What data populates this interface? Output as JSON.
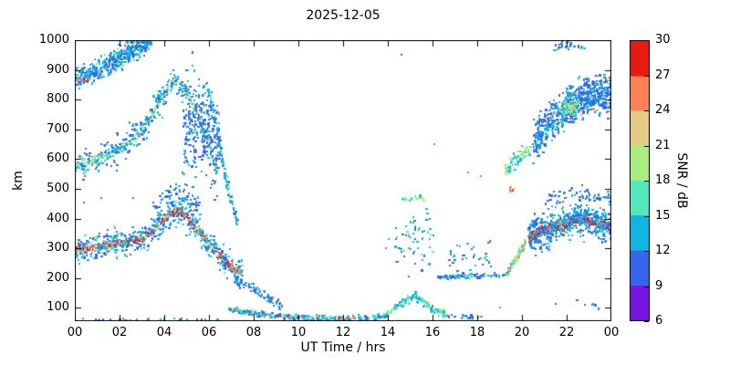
{
  "title": "2025-12-05",
  "chart_data": {
    "type": "scatter",
    "title": "2025-12-05",
    "xlabel": "UT Time / hrs",
    "ylabel": "km",
    "cblabel": "SNR / dB",
    "xlim": [
      0,
      24
    ],
    "ylim": [
      55,
      1000
    ],
    "snr_lim": [
      6,
      30
    ],
    "grid": false,
    "legend": "colorbar-right",
    "xticks": [
      "00",
      "02",
      "04",
      "06",
      "08",
      "10",
      "12",
      "14",
      "16",
      "18",
      "20",
      "22",
      "00"
    ],
    "xtick_values": [
      0,
      2,
      4,
      6,
      8,
      10,
      12,
      14,
      16,
      18,
      20,
      22,
      24
    ],
    "yticks": [
      100,
      200,
      300,
      400,
      500,
      600,
      700,
      800,
      900,
      1000
    ],
    "cbticks": [
      6,
      9,
      12,
      15,
      18,
      21,
      24,
      27,
      30
    ],
    "colorbar_colors": [
      "#7716e3",
      "#3565e8",
      "#0fb6e1",
      "#52e8bb",
      "#a9ee7e",
      "#e2cc83",
      "#fa8256",
      "#e8190f"
    ],
    "bands": [
      {
        "name": "morning-F-core",
        "path": [
          [
            0,
            300
          ],
          [
            1,
            305
          ],
          [
            2,
            318
          ],
          [
            3,
            332
          ],
          [
            3.7,
            372
          ],
          [
            4.3,
            418
          ],
          [
            4.7,
            426
          ],
          [
            5,
            402
          ],
          [
            5.5,
            362
          ],
          [
            6,
            316
          ],
          [
            6.5,
            272
          ],
          [
            7,
            236
          ],
          [
            7.5,
            216
          ]
        ],
        "spread": 13,
        "n": 560,
        "snr": [
          21,
          30
        ]
      },
      {
        "name": "morning-F-fringe",
        "path": [
          [
            0,
            300
          ],
          [
            1,
            305
          ],
          [
            2,
            318
          ],
          [
            3,
            332
          ],
          [
            3.7,
            372
          ],
          [
            4.3,
            418
          ],
          [
            4.7,
            426
          ],
          [
            5,
            402
          ],
          [
            5.5,
            362
          ],
          [
            6,
            316
          ],
          [
            6.5,
            272
          ],
          [
            7,
            236
          ],
          [
            7.5,
            216
          ]
        ],
        "spread": 46,
        "n": 520,
        "snr": [
          9,
          16
        ]
      },
      {
        "name": "morning-F-peak-top",
        "path": [
          [
            3.5,
            440
          ],
          [
            4,
            472
          ],
          [
            4.5,
            492
          ],
          [
            5,
            472
          ],
          [
            5.6,
            442
          ]
        ],
        "spread": 28,
        "n": 70,
        "snr": [
          9,
          14
        ]
      },
      {
        "name": "second-hop-core",
        "path": [
          [
            0,
            580
          ],
          [
            0.8,
            596
          ],
          [
            1.6,
            618
          ],
          [
            2.4,
            652
          ],
          [
            3,
            702
          ],
          [
            3.5,
            758
          ],
          [
            4,
            818
          ],
          [
            4.5,
            866
          ],
          [
            5,
            828
          ],
          [
            5.5,
            742
          ],
          [
            6,
            642
          ],
          [
            6.4,
            562
          ]
        ],
        "spread": 18,
        "n": 300,
        "snr": [
          12,
          23
        ]
      },
      {
        "name": "second-hop-fringe",
        "path": [
          [
            0,
            580
          ],
          [
            0.8,
            596
          ],
          [
            1.6,
            618
          ],
          [
            2.4,
            652
          ],
          [
            3,
            702
          ],
          [
            3.5,
            758
          ],
          [
            4,
            818
          ],
          [
            4.5,
            866
          ],
          [
            5,
            828
          ],
          [
            5.5,
            742
          ],
          [
            6,
            642
          ],
          [
            6.4,
            562
          ]
        ],
        "spread": 52,
        "n": 240,
        "snr": [
          9,
          14
        ]
      },
      {
        "name": "third-hop",
        "path": [
          [
            0,
            868
          ],
          [
            0.7,
            888
          ],
          [
            1.4,
            914
          ],
          [
            2.1,
            944
          ],
          [
            2.8,
            976
          ],
          [
            3.4,
            1000
          ]
        ],
        "spread": 34,
        "n": 440,
        "snr": [
          9,
          16
        ]
      },
      {
        "name": "left-edge-strong-dots",
        "path": [
          [
            0.1,
            862
          ],
          [
            0.6,
            870
          ]
        ],
        "spread": 9,
        "n": 10,
        "snr": [
          23,
          30
        ]
      },
      {
        "name": "spread-F-columns",
        "path": [
          [
            4.8,
            700
          ],
          [
            5.3,
            730
          ],
          [
            5.8,
            705
          ],
          [
            6.2,
            680
          ],
          [
            6.5,
            650
          ]
        ],
        "spread": 165,
        "n": 260,
        "snr": [
          9,
          13
        ]
      },
      {
        "name": "descending-streak",
        "path": [
          [
            5.9,
            850
          ],
          [
            6.2,
            750
          ],
          [
            6.5,
            630
          ],
          [
            6.8,
            520
          ],
          [
            7.1,
            430
          ],
          [
            7.3,
            380
          ]
        ],
        "spread": 24,
        "n": 120,
        "snr": [
          9,
          16
        ]
      },
      {
        "name": "morning-low-tail",
        "path": [
          [
            7.1,
            205
          ],
          [
            7.6,
            182
          ],
          [
            8.1,
            158
          ],
          [
            8.7,
            130
          ],
          [
            9.3,
            106
          ]
        ],
        "spread": 16,
        "n": 80,
        "snr": [
          9,
          14
        ]
      },
      {
        "name": "e-layer-sparse-early",
        "path": [
          [
            0.3,
            62
          ],
          [
            6.5,
            62
          ]
        ],
        "spread": 5,
        "n": 26,
        "snr": [
          9,
          15
        ]
      },
      {
        "name": "e-layer-main",
        "path": [
          [
            6.9,
            96
          ],
          [
            7.6,
            86
          ],
          [
            8.6,
            76
          ],
          [
            10,
            68
          ],
          [
            12,
            64
          ],
          [
            13.5,
            68
          ],
          [
            14,
            76
          ]
        ],
        "spread": 9,
        "n": 300,
        "snr": [
          9,
          18
        ]
      },
      {
        "name": "e-layer-strong-dots",
        "path": [
          [
            7,
            95
          ],
          [
            8,
            80
          ],
          [
            10,
            68
          ],
          [
            13,
            66
          ]
        ],
        "spread": 7,
        "n": 22,
        "snr": [
          21,
          29
        ]
      },
      {
        "name": "e-layer-afternoon-bump",
        "path": [
          [
            14,
            82
          ],
          [
            14.4,
            102
          ],
          [
            14.8,
            126
          ],
          [
            15.2,
            140
          ],
          [
            15.6,
            120
          ],
          [
            16,
            96
          ],
          [
            16.6,
            80
          ]
        ],
        "spread": 14,
        "n": 150,
        "snr": [
          11,
          20
        ]
      },
      {
        "name": "e-layer-late-sparse",
        "path": [
          [
            16.6,
            74
          ],
          [
            18.2,
            68
          ]
        ],
        "spread": 7,
        "n": 20,
        "snr": [
          9,
          15
        ]
      },
      {
        "name": "afternoon-scatter",
        "path": [
          [
            14.2,
            300
          ],
          [
            15,
            330
          ],
          [
            16.1,
            360
          ]
        ],
        "spread": 85,
        "n": 60,
        "snr": [
          9,
          16
        ]
      },
      {
        "name": "afternoon-line-470",
        "path": [
          [
            14.6,
            464
          ],
          [
            15.6,
            470
          ]
        ],
        "spread": 7,
        "n": 22,
        "snr": [
          14,
          20
        ]
      },
      {
        "name": "evening-low-line",
        "path": [
          [
            16.2,
            204
          ],
          [
            17.2,
            206
          ],
          [
            18.2,
            208
          ],
          [
            19.1,
            211
          ],
          [
            19.4,
            216
          ]
        ],
        "spread": 7,
        "n": 85,
        "snr": [
          9,
          16
        ]
      },
      {
        "name": "evening-low-scatter",
        "path": [
          [
            16.6,
            262
          ],
          [
            17.6,
            272
          ],
          [
            18.6,
            282
          ]
        ],
        "spread": 55,
        "n": 34,
        "snr": [
          9,
          14
        ]
      },
      {
        "name": "evening-rise",
        "path": [
          [
            19.35,
            218
          ],
          [
            19.6,
            246
          ],
          [
            19.9,
            286
          ],
          [
            20.15,
            318
          ]
        ],
        "spread": 14,
        "n": 90,
        "snr": [
          14,
          27
        ]
      },
      {
        "name": "evening-F-core",
        "path": [
          [
            20.3,
            336
          ],
          [
            20.8,
            356
          ],
          [
            21.3,
            366
          ],
          [
            21.8,
            380
          ],
          [
            22.3,
            394
          ],
          [
            22.8,
            396
          ],
          [
            23.3,
            386
          ],
          [
            23.7,
            378
          ],
          [
            24,
            372
          ]
        ],
        "spread": 14,
        "n": 620,
        "snr": [
          22,
          30
        ]
      },
      {
        "name": "evening-F-fringe",
        "path": [
          [
            20.3,
            336
          ],
          [
            20.8,
            356
          ],
          [
            21.3,
            366
          ],
          [
            21.8,
            380
          ],
          [
            22.3,
            394
          ],
          [
            22.8,
            396
          ],
          [
            23.3,
            386
          ],
          [
            23.7,
            378
          ],
          [
            24,
            372
          ]
        ],
        "spread": 55,
        "n": 480,
        "snr": [
          9,
          15
        ]
      },
      {
        "name": "evening-F-top-fringe",
        "path": [
          [
            21,
            460
          ],
          [
            22,
            492
          ],
          [
            23,
            482
          ],
          [
            24,
            462
          ]
        ],
        "spread": 24,
        "n": 55,
        "snr": [
          9,
          13
        ]
      },
      {
        "name": "evening-mid-cluster",
        "path": [
          [
            19.2,
            558
          ],
          [
            19.6,
            584
          ],
          [
            20,
            614
          ],
          [
            20.4,
            642
          ]
        ],
        "spread": 24,
        "n": 85,
        "snr": [
          12,
          21
        ]
      },
      {
        "name": "evening-orange-dots",
        "path": [
          [
            19.45,
            494
          ],
          [
            19.7,
            506
          ]
        ],
        "spread": 9,
        "n": 7,
        "snr": [
          23,
          28
        ]
      },
      {
        "name": "evening-upper-cloud",
        "path": [
          [
            20.5,
            660
          ],
          [
            21,
            702
          ],
          [
            21.5,
            742
          ],
          [
            22,
            780
          ],
          [
            22.5,
            800
          ],
          [
            23,
            812
          ],
          [
            23.5,
            816
          ],
          [
            24,
            810
          ]
        ],
        "spread": 62,
        "n": 680,
        "snr": [
          9,
          14
        ]
      },
      {
        "name": "evening-upper-green",
        "path": [
          [
            21.8,
            758
          ],
          [
            22.5,
            784
          ]
        ],
        "spread": 28,
        "n": 70,
        "snr": [
          12,
          20
        ]
      },
      {
        "name": "evening-upper-warm-dots",
        "path": [
          [
            21.2,
            730
          ],
          [
            22.2,
            780
          ],
          [
            23.2,
            800
          ]
        ],
        "spread": 48,
        "n": 14,
        "snr": [
          20,
          26
        ]
      },
      {
        "name": "evening-top-dots",
        "path": [
          [
            21.4,
            974
          ],
          [
            22,
            986
          ],
          [
            22.8,
            972
          ]
        ],
        "spread": 16,
        "n": 30,
        "snr": [
          9,
          13
        ]
      },
      {
        "name": "late-night-low-dots",
        "path": [
          [
            22.4,
            116
          ],
          [
            23.5,
            106
          ]
        ],
        "spread": 9,
        "n": 7,
        "snr": [
          9,
          13
        ]
      }
    ],
    "extra_points": [
      [
        16.1,
        650,
        14
      ],
      [
        17.6,
        556,
        13
      ],
      [
        18.15,
        544,
        14
      ],
      [
        13.9,
        300,
        12
      ],
      [
        14.05,
        332,
        12
      ],
      [
        0.4,
        455,
        10
      ],
      [
        1.2,
        468,
        10
      ],
      [
        2.6,
        470,
        10
      ],
      [
        14.6,
        950,
        10
      ],
      [
        19.0,
        100,
        12
      ],
      [
        21.5,
        112,
        10
      ]
    ]
  }
}
